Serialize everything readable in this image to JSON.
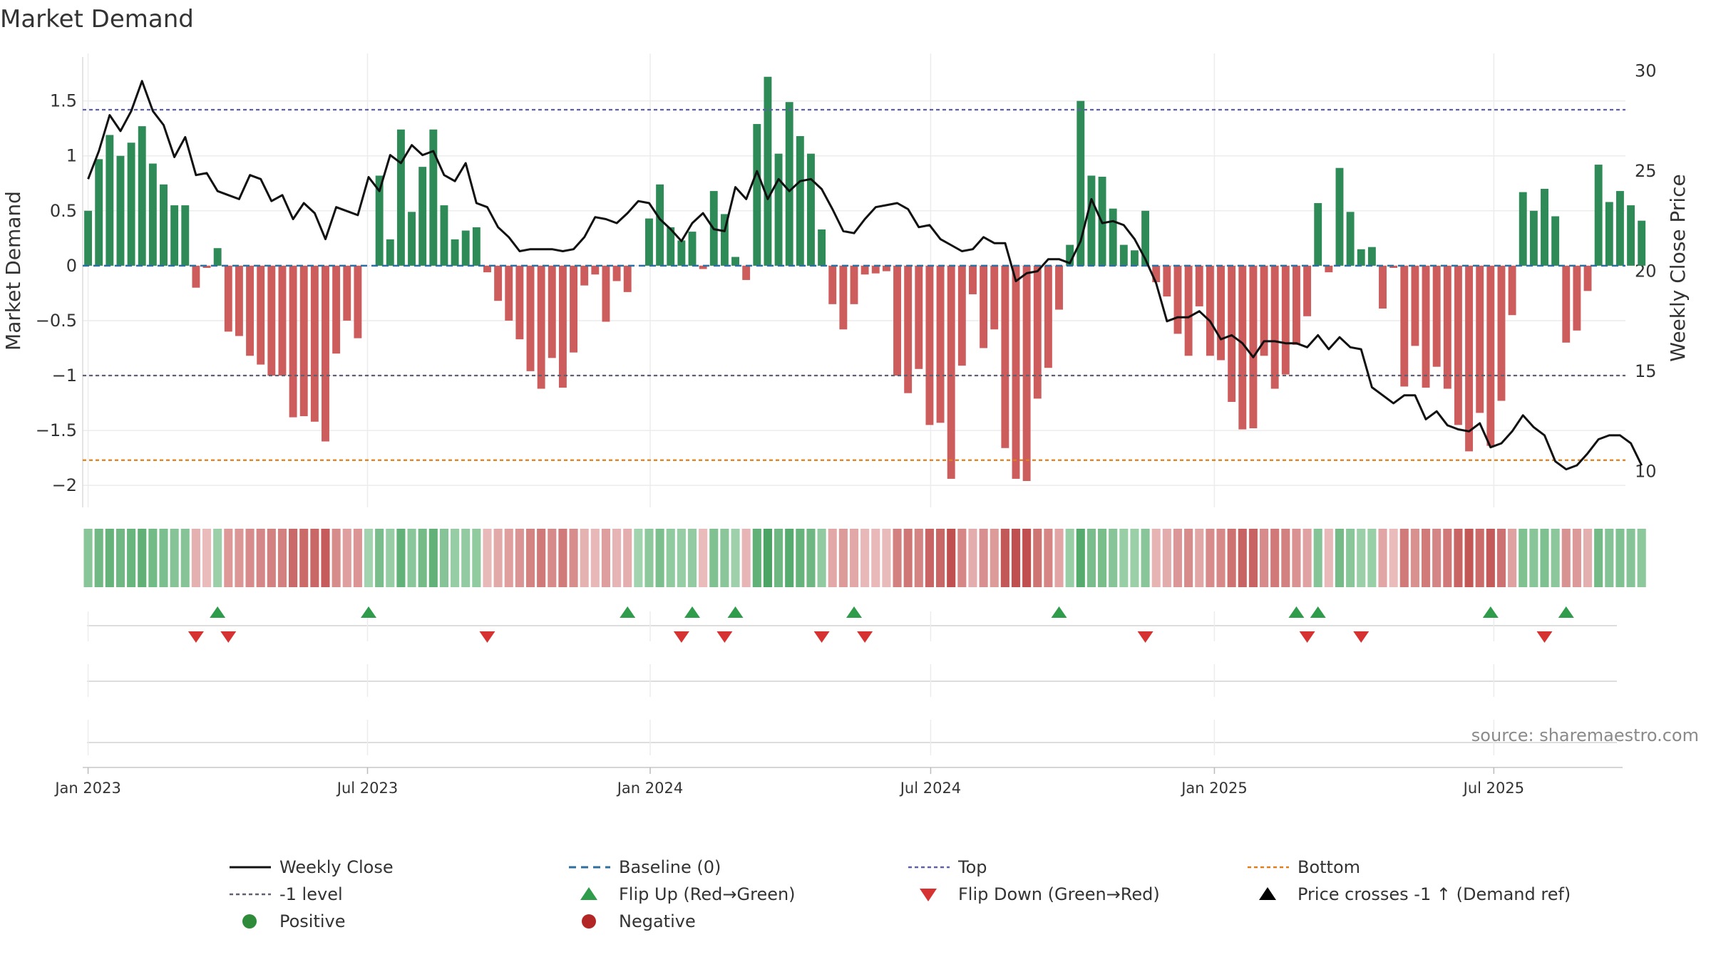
{
  "chart_data": {
    "type": "bar",
    "title": "Market Demand",
    "ylabel": "Market Demand",
    "y2label": "Weekly Close Price",
    "ylim": [
      -2.2,
      1.9
    ],
    "y2lim": [
      8.2,
      30.7
    ],
    "yticks": [
      1.5,
      1,
      0.5,
      0,
      -0.5,
      -1,
      -1.5,
      -2
    ],
    "ytick_labels": [
      "1.5",
      "1",
      "0.5",
      "0",
      "−0.5",
      "−1",
      "−1.5",
      "−2"
    ],
    "y2ticks": [
      30,
      25,
      20,
      15,
      10
    ],
    "y2tick_labels": [
      "30",
      "25",
      "20",
      "15",
      "10"
    ],
    "xticks": [
      0,
      25.9,
      52.1,
      78.1,
      104.4,
      130.3
    ],
    "xtick_labels": [
      "Jan 2023",
      "Jul 2023",
      "Jan 2024",
      "Jul 2024",
      "Jan 2025",
      "Jul 2025"
    ],
    "source": "source: sharemaestro.com",
    "levels": {
      "top": 1.42,
      "minus_one": -1.0,
      "bottom": -1.77,
      "baseline": 0
    },
    "weeks": 143,
    "demand": [
      0.5,
      0.97,
      1.19,
      1.0,
      1.12,
      1.27,
      0.93,
      0.74,
      0.55,
      0.55,
      -0.2,
      -0.02,
      0.16,
      -0.6,
      -0.64,
      -0.82,
      -0.9,
      -1.0,
      -1.0,
      -1.38,
      -1.37,
      -1.42,
      -1.6,
      -0.8,
      -0.5,
      -0.66,
      0.0,
      0.82,
      0.24,
      1.24,
      0.49,
      0.9,
      1.24,
      0.55,
      0.24,
      0.32,
      0.35,
      -0.06,
      -0.32,
      -0.5,
      -0.67,
      -0.96,
      -1.12,
      -0.84,
      -1.11,
      -0.79,
      -0.18,
      -0.08,
      -0.51,
      -0.14,
      -0.24,
      0.0,
      0.43,
      0.74,
      0.35,
      0.23,
      0.31,
      -0.03,
      0.68,
      0.47,
      0.08,
      -0.13,
      1.29,
      1.72,
      1.02,
      1.49,
      1.18,
      1.02,
      0.33,
      -0.35,
      -0.58,
      -0.35,
      -0.08,
      -0.07,
      -0.05,
      -1.0,
      -1.16,
      -0.94,
      -1.45,
      -1.43,
      -1.94,
      -0.91,
      -0.26,
      -0.75,
      -0.58,
      -1.66,
      -1.94,
      -1.96,
      -1.21,
      -0.93,
      -0.4,
      0.19,
      1.5,
      0.82,
      0.81,
      0.52,
      0.19,
      0.14,
      0.5,
      -0.15,
      -0.28,
      -0.62,
      -0.82,
      -0.37,
      -0.82,
      -0.86,
      -1.24,
      -1.49,
      -1.48,
      -0.82,
      -1.12,
      -0.99,
      -0.72,
      -0.46,
      0.57,
      -0.06,
      0.89,
      0.49,
      0.15,
      0.17,
      -0.39,
      -0.02,
      -1.1,
      -0.73,
      -1.11,
      -0.92,
      -1.12,
      -1.45,
      -1.69,
      -1.34,
      -1.64,
      -1.23,
      -0.45,
      0.67,
      0.5,
      0.7,
      0.45,
      -0.7,
      -0.59,
      -0.23,
      0.92,
      0.58,
      0.68,
      0.55,
      0.41
    ],
    "close": [
      24.6,
      26.0,
      27.8,
      27.0,
      28.0,
      29.5,
      28.0,
      27.3,
      25.7,
      26.7,
      24.8,
      24.9,
      24.0,
      23.8,
      23.6,
      24.8,
      24.6,
      23.5,
      23.8,
      22.6,
      23.4,
      22.9,
      21.6,
      23.2,
      23.0,
      22.8,
      24.7,
      24.0,
      25.8,
      25.4,
      26.3,
      25.8,
      26.0,
      24.8,
      24.5,
      25.4,
      23.4,
      23.2,
      22.2,
      21.7,
      21.0,
      21.1,
      21.1,
      21.1,
      21.0,
      21.1,
      21.7,
      22.7,
      22.6,
      22.4,
      22.9,
      23.5,
      23.4,
      22.6,
      22.1,
      21.5,
      22.4,
      22.9,
      22.1,
      22.0,
      24.2,
      23.6,
      25.0,
      23.6,
      24.6,
      24.0,
      24.5,
      24.6,
      24.1,
      23.1,
      22.0,
      21.9,
      22.6,
      23.2,
      23.3,
      23.4,
      23.1,
      22.2,
      22.3,
      21.6,
      21.3,
      21.0,
      21.1,
      21.7,
      21.4,
      21.4,
      19.5,
      19.9,
      20.0,
      20.6,
      20.6,
      20.4,
      21.5,
      23.6,
      22.4,
      22.5,
      22.3,
      21.6,
      20.6,
      19.4,
      17.5,
      17.7,
      17.7,
      18.0,
      17.5,
      16.6,
      16.8,
      16.4,
      15.7,
      16.5,
      16.5,
      16.4,
      16.4,
      16.2,
      16.8,
      16.1,
      16.7,
      16.2,
      16.1,
      14.2,
      13.8,
      13.4,
      13.8,
      13.8,
      12.6,
      13.0,
      12.3,
      12.1,
      12.0,
      12.4,
      11.2,
      11.4,
      12.0,
      12.8,
      12.2,
      11.8,
      10.5,
      10.1,
      10.3,
      10.9,
      11.6,
      11.8,
      11.8,
      11.4,
      10.3
    ],
    "flip_up": [
      12,
      26,
      50,
      56,
      60,
      71,
      90,
      112,
      114,
      130,
      137
    ],
    "flip_down": [
      10,
      13,
      37,
      55,
      59,
      68,
      72,
      98,
      113,
      118,
      135
    ],
    "legend": [
      {
        "label": "Weekly Close",
        "marker": "line-solid",
        "color": "#111111"
      },
      {
        "label": "Baseline (0)",
        "marker": "line-dash",
        "color": "#2e6fa0"
      },
      {
        "label": "Top",
        "marker": "line-dot",
        "color": "#6060a8"
      },
      {
        "label": "Bottom",
        "marker": "line-dot",
        "color": "#e07f1a"
      },
      {
        "label": "-1 level",
        "marker": "line-dot",
        "color": "#606070"
      },
      {
        "label": "Flip Up (Red→Green)",
        "marker": "triangle-up",
        "color": "#2e9c4a"
      },
      {
        "label": "Flip Down (Green→Red)",
        "marker": "triangle-down",
        "color": "#d63232"
      },
      {
        "label": "Price crosses -1 ↑ (Demand ref)",
        "marker": "triangle-up",
        "color": "#000000"
      },
      {
        "label": "Positive",
        "marker": "circle",
        "color": "#2e8b3a"
      },
      {
        "label": "Negative",
        "marker": "circle",
        "color": "#b32626"
      }
    ],
    "colors": {
      "positive_bar": "#2e8b57",
      "negative_bar": "#cd5c5c",
      "close_line": "#111111",
      "grid": "#e6e6e6"
    }
  }
}
